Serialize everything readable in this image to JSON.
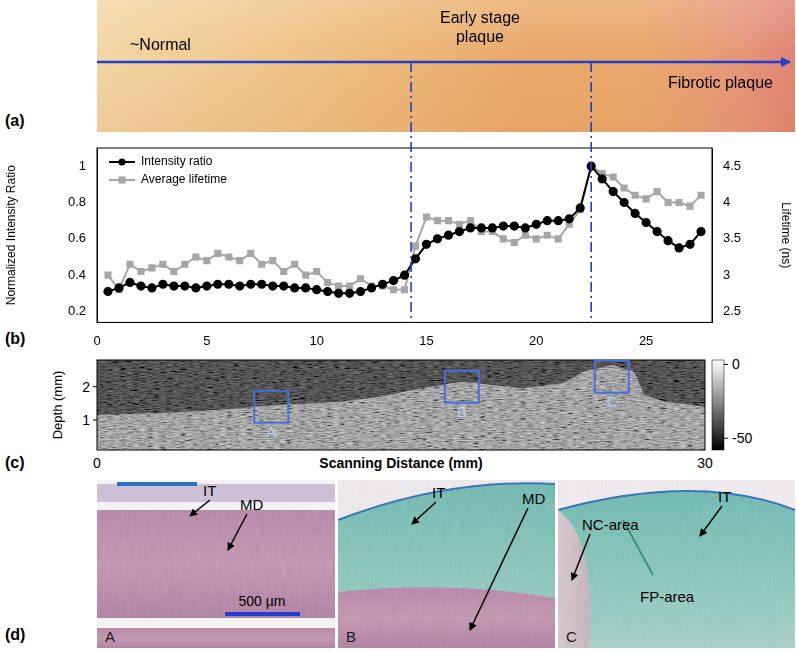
{
  "figure": {
    "panel_a": {
      "label": "(a)",
      "stages": [
        "~Normal",
        "Early stage plaque",
        "Fibrotic plaque"
      ]
    },
    "panel_c": {
      "label": "(c)",
      "ylabel": "Depth (mm)",
      "xlabel": "Scanning Distance (mm)",
      "xlim": [
        0,
        30
      ],
      "xticks": [
        0,
        30
      ],
      "ylim": [
        0.1,
        2.8
      ],
      "yticks": [
        1,
        2
      ],
      "colorbar": {
        "range": [
          -58,
          3
        ],
        "ticks": [
          0,
          -50
        ]
      },
      "regions": [
        {
          "label": "A",
          "x": 8.6,
          "depth": 1.4
        },
        {
          "label": "B",
          "x": 18,
          "depth": 2.0
        },
        {
          "label": "C",
          "x": 25.4,
          "depth": 2.3
        }
      ]
    },
    "panel_d": {
      "label": "(d)",
      "scale_bar": "500 µm",
      "images": [
        {
          "label": "A",
          "annotations": [
            "IT",
            "MD"
          ]
        },
        {
          "label": "B",
          "annotations": [
            "IT",
            "MD"
          ]
        },
        {
          "label": "C",
          "annotations": [
            "IT",
            "NC-area",
            "FP-area"
          ]
        }
      ]
    }
  },
  "chart_data": {
    "type": "line",
    "panel_label": "(b)",
    "ylabel": "Normalized Intensity Ratio",
    "y2label": "Lifetime (ns)",
    "x": [
      0.5,
      1,
      1.5,
      2,
      2.5,
      3,
      3.5,
      4,
      4.5,
      5,
      5.5,
      6,
      6.5,
      7,
      7.5,
      8,
      8.5,
      9,
      9.5,
      10,
      10.5,
      11,
      11.5,
      12,
      12.5,
      13,
      13.5,
      14,
      14.5,
      15,
      15.5,
      16,
      16.5,
      17,
      17.5,
      18,
      18.5,
      19,
      19.5,
      20,
      20.5,
      21,
      21.5,
      22,
      22.5,
      23,
      23.5,
      24,
      24.5,
      25,
      25.5,
      26,
      26.5,
      27,
      27.5
    ],
    "series": [
      {
        "name": "Intensity ratio",
        "color": "#000000",
        "marker": "circle",
        "axis": "y",
        "values": [
          0.31,
          0.33,
          0.36,
          0.34,
          0.33,
          0.35,
          0.34,
          0.34,
          0.33,
          0.34,
          0.35,
          0.35,
          0.34,
          0.35,
          0.35,
          0.34,
          0.34,
          0.33,
          0.33,
          0.32,
          0.31,
          0.3,
          0.3,
          0.31,
          0.33,
          0.35,
          0.37,
          0.4,
          0.49,
          0.57,
          0.6,
          0.62,
          0.64,
          0.66,
          0.66,
          0.66,
          0.67,
          0.67,
          0.66,
          0.68,
          0.7,
          0.7,
          0.71,
          0.77,
          1,
          0.93,
          0.86,
          0.8,
          0.74,
          0.69,
          0.64,
          0.59,
          0.55,
          0.57,
          0.64
        ]
      },
      {
        "name": "Average lifetime",
        "color": "#a6a6a6",
        "marker": "square",
        "axis": "y2",
        "values": [
          3.0,
          2.8,
          3.15,
          3.05,
          3.1,
          3.15,
          3.05,
          3.15,
          3.25,
          3.2,
          3.3,
          3.25,
          3.2,
          3.3,
          3.15,
          3.2,
          3.05,
          3.15,
          3.0,
          3.05,
          2.9,
          2.85,
          2.85,
          2.95,
          2.85,
          2.85,
          2.8,
          2.8,
          3.4,
          3.8,
          3.75,
          3.75,
          3.7,
          3.75,
          3.6,
          3.6,
          3.5,
          3.45,
          3.55,
          3.5,
          3.55,
          3.5,
          3.7,
          3.9,
          4.5,
          4.4,
          4.35,
          4.2,
          4.1,
          4.05,
          4.15,
          4.0,
          4.0,
          3.95,
          4.1
        ]
      }
    ],
    "xlim": [
      0,
      28
    ],
    "xticks": [
      0,
      5,
      10,
      15,
      20,
      25
    ],
    "ylim": [
      0.14,
      1.1
    ],
    "yticks": [
      0.2,
      0.4,
      0.6,
      0.8,
      1
    ],
    "y2lim": [
      2.35,
      4.75
    ],
    "y2ticks": [
      2.5,
      3,
      3.5,
      4,
      4.5
    ],
    "boundaries": [
      14.3,
      22.5
    ],
    "grid": false,
    "legend": "upper left"
  }
}
